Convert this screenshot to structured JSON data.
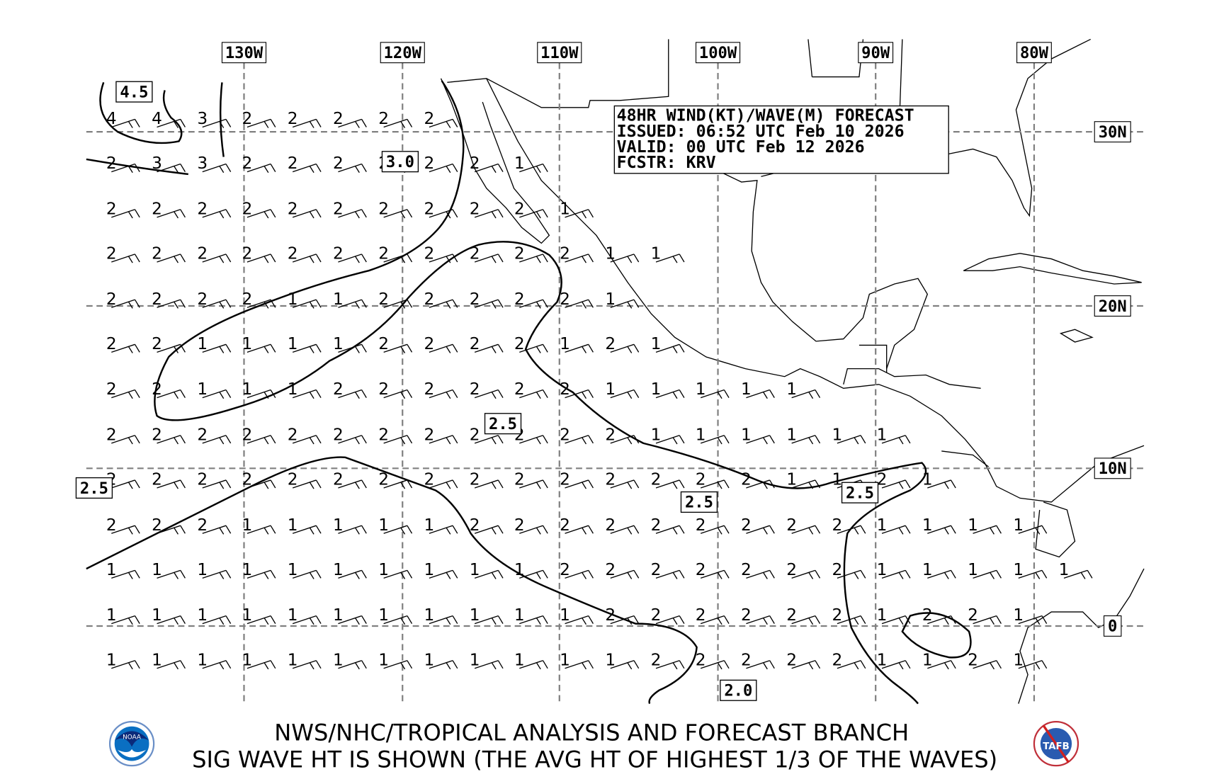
{
  "info_box": {
    "line1": "48HR WIND(KT)/WAVE(M) FORECAST",
    "line2": "ISSUED: 06:52 UTC Feb 10 2026",
    "line3": "VALID: 00 UTC Feb 12 2026",
    "line4": "FCSTR: KRV"
  },
  "footer": {
    "line1": "NWS/NHC/TROPICAL ANALYSIS AND FORECAST BRANCH",
    "line2": "SIG WAVE HT IS SHOWN (THE AVG HT OF HIGHEST 1/3 OF THE WAVES)"
  },
  "logos": {
    "left": "NOAA",
    "right": "TAFB"
  },
  "longitude_labels": [
    "130W",
    "120W",
    "110W",
    "100W",
    "90W",
    "80W"
  ],
  "latitude_labels": [
    "30N",
    "20N",
    "10N",
    "0"
  ],
  "contour_labels": [
    "4.5",
    "3.0",
    "2.5",
    "2.5",
    "2.5",
    "2.5",
    "2.0"
  ],
  "wave_heights_m": [
    [
      4,
      4,
      3,
      2,
      2,
      2,
      2,
      2
    ],
    [
      2,
      3,
      3,
      2,
      2,
      2,
      2,
      2,
      2,
      1
    ],
    [
      2,
      2,
      2,
      2,
      2,
      2,
      2,
      2,
      2,
      2,
      1
    ],
    [
      2,
      2,
      2,
      2,
      2,
      2,
      2,
      2,
      2,
      2,
      2,
      1,
      1
    ],
    [
      2,
      2,
      2,
      2,
      1,
      1,
      2,
      2,
      2,
      2,
      2,
      1
    ],
    [
      2,
      2,
      1,
      1,
      1,
      1,
      2,
      2,
      2,
      2,
      1,
      2,
      1
    ],
    [
      2,
      2,
      1,
      1,
      1,
      2,
      2,
      2,
      2,
      2,
      2,
      1,
      1,
      1,
      1,
      1
    ],
    [
      2,
      2,
      2,
      2,
      2,
      2,
      2,
      2,
      2,
      2,
      2,
      2,
      1,
      1,
      1,
      1,
      1,
      1
    ],
    [
      2,
      2,
      2,
      2,
      2,
      2,
      2,
      2,
      2,
      2,
      2,
      2,
      2,
      2,
      2,
      1,
      1,
      2,
      1
    ],
    [
      2,
      2,
      2,
      1,
      1,
      1,
      1,
      1,
      2,
      2,
      2,
      2,
      2,
      2,
      2,
      2,
      2,
      1,
      1,
      1,
      1
    ],
    [
      1,
      1,
      1,
      1,
      1,
      1,
      1,
      1,
      1,
      1,
      2,
      2,
      2,
      2,
      2,
      2,
      2,
      1,
      1,
      1,
      1,
      1
    ],
    [
      1,
      1,
      1,
      1,
      1,
      1,
      1,
      1,
      1,
      1,
      1,
      2,
      2,
      2,
      2,
      2,
      2,
      1,
      2,
      2,
      1
    ],
    [
      1,
      1,
      1,
      1,
      1,
      1,
      1,
      1,
      1,
      1,
      1,
      1,
      2,
      2,
      2,
      2,
      2,
      1,
      1,
      2,
      1
    ]
  ],
  "colors": {
    "grid": "#808080",
    "lines": "#000000"
  }
}
